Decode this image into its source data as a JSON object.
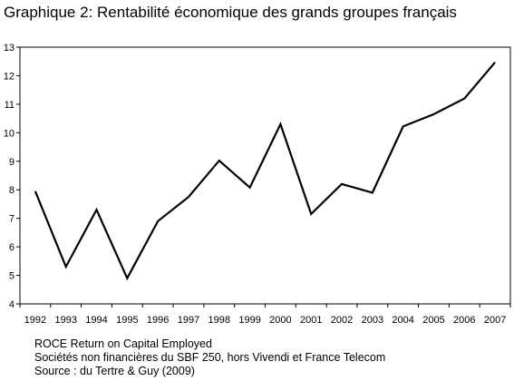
{
  "chart_data": {
    "type": "line",
    "title": "Graphique 2: Rentabilité économique des grands groupes français",
    "xlabel": "",
    "ylabel": "",
    "categories": [
      "1992",
      "1993",
      "1994",
      "1995",
      "1996",
      "1997",
      "1998",
      "1999",
      "2000",
      "2001",
      "2002",
      "2003",
      "2004",
      "2005",
      "2006",
      "2007"
    ],
    "series": [
      {
        "values": [
          7.95,
          5.3,
          7.3,
          4.9,
          6.9,
          7.75,
          9.02,
          8.08,
          10.3,
          7.15,
          8.2,
          7.9,
          10.22,
          10.65,
          11.2,
          12.47
        ]
      }
    ],
    "yticks": [
      4,
      5,
      6,
      7,
      8,
      9,
      10,
      11,
      12,
      13
    ],
    "ylim": [
      4,
      13
    ],
    "grid": false,
    "legend": "none",
    "line_color": "#000000"
  },
  "notes": [
    "ROCE   Return on Capital Employed",
    "Sociétés non financières du SBF 250, hors Vivendi et France Telecom",
    "Source : du Tertre & Guy (2009)"
  ]
}
